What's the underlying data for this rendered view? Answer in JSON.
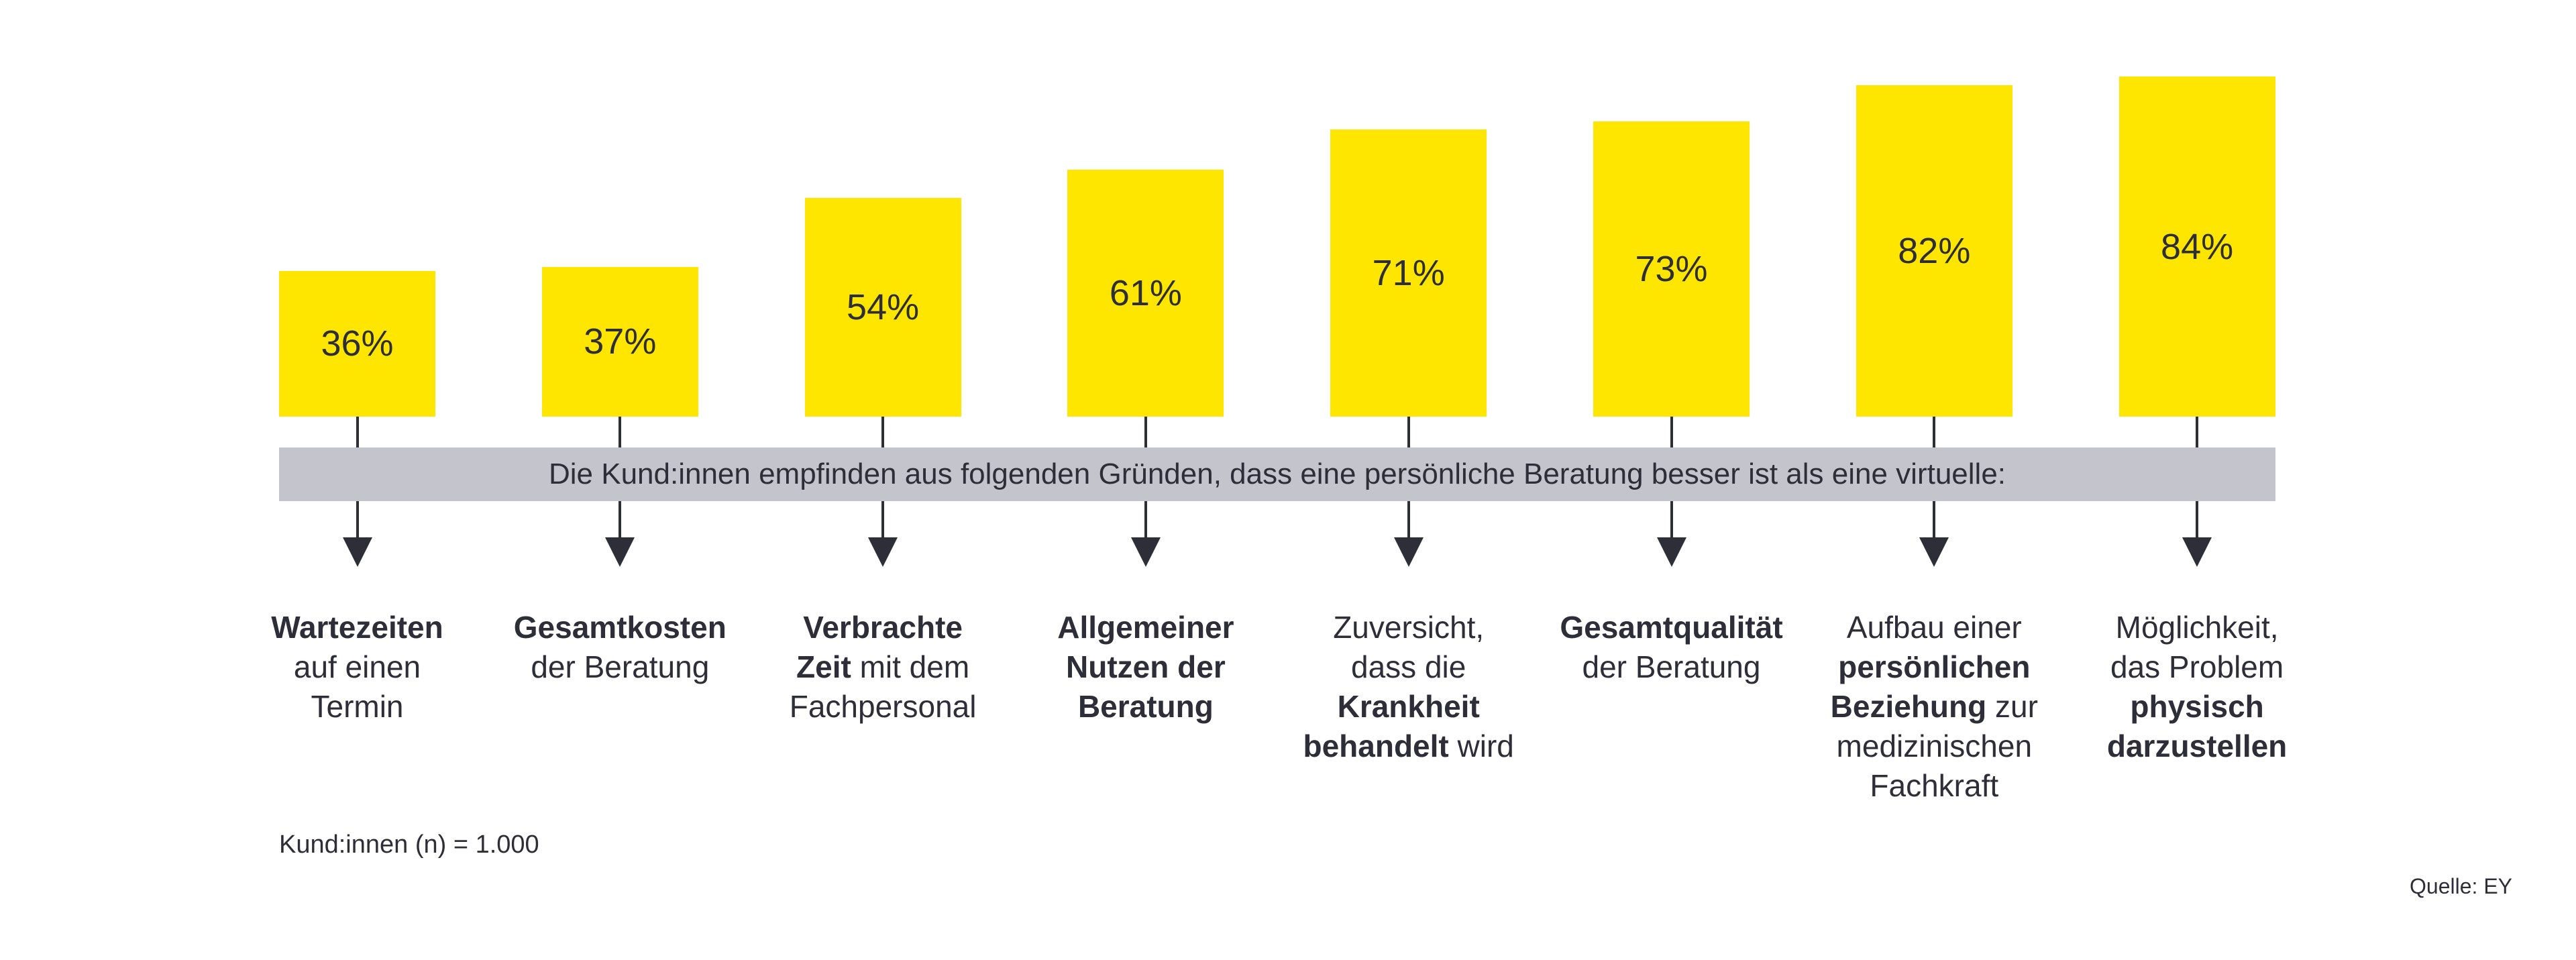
{
  "chart_data": {
    "type": "bar",
    "title": "Die Kund:innen empfinden aus folgenden Gründen, dass eine persönliche Beratung besser ist als eine virtuelle:",
    "categories": [
      "Wartezeiten auf einen Termin",
      "Gesamtkosten der Beratung",
      "Verbrachte Zeit mit dem Fachpersonal",
      "Allgemeiner Nutzen der Beratung",
      "Zuversicht, dass die Krankheit behandelt wird",
      "Gesamtqualität der Beratung",
      "Aufbau einer persönlichen Beziehung zur medizinischen Fachkraft",
      "Möglichkeit, das Problem physisch darzustellen"
    ],
    "values": [
      36,
      37,
      54,
      61,
      71,
      73,
      82,
      84
    ],
    "value_labels": [
      "36%",
      "37%",
      "54%",
      "61%",
      "71%",
      "73%",
      "82%",
      "84%"
    ],
    "unit": "%",
    "ylim": [
      0,
      100
    ],
    "grid": false,
    "bar_color": "#ffe600",
    "band_color": "#c4c4cc",
    "text_color": "#2e2e38",
    "label_lines": [
      [
        [
          {
            "t": "Wartezeiten",
            "b": true
          }
        ],
        [
          {
            "t": "auf einen",
            "b": false
          }
        ],
        [
          {
            "t": "Termin",
            "b": false
          }
        ]
      ],
      [
        [
          {
            "t": "Gesamtkosten",
            "b": true
          }
        ],
        [
          {
            "t": "der Beratung",
            "b": false
          }
        ]
      ],
      [
        [
          {
            "t": "Verbrachte",
            "b": true
          }
        ],
        [
          {
            "t": "Zeit",
            "b": true
          },
          {
            "t": " mit dem",
            "b": false
          }
        ],
        [
          {
            "t": "Fachpersonal",
            "b": false
          }
        ]
      ],
      [
        [
          {
            "t": "Allgemeiner",
            "b": true
          }
        ],
        [
          {
            "t": "Nutzen der",
            "b": true
          }
        ],
        [
          {
            "t": "Beratung",
            "b": true
          }
        ]
      ],
      [
        [
          {
            "t": "Zuversicht,",
            "b": false
          }
        ],
        [
          {
            "t": "dass die",
            "b": false
          }
        ],
        [
          {
            "t": "Krankheit",
            "b": true
          }
        ],
        [
          {
            "t": "behandelt",
            "b": true
          },
          {
            "t": " wird",
            "b": false
          }
        ]
      ],
      [
        [
          {
            "t": "Gesamtqualität",
            "b": true
          }
        ],
        [
          {
            "t": "der Beratung",
            "b": false
          }
        ]
      ],
      [
        [
          {
            "t": "Aufbau einer",
            "b": false
          }
        ],
        [
          {
            "t": "persönlichen",
            "b": true
          }
        ],
        [
          {
            "t": "Beziehung",
            "b": true
          },
          {
            "t": " zur",
            "b": false
          }
        ],
        [
          {
            "t": "medizinischen",
            "b": false
          }
        ],
        [
          {
            "t": "Fachkraft",
            "b": false
          }
        ]
      ],
      [
        [
          {
            "t": "Möglichkeit,",
            "b": false
          }
        ],
        [
          {
            "t": "das Problem",
            "b": false
          }
        ],
        [
          {
            "t": "physisch",
            "b": true
          }
        ],
        [
          {
            "t": "darzustellen",
            "b": true
          }
        ]
      ]
    ]
  },
  "footer": {
    "sample": "Kund:innen (n) = 1.000",
    "source": "Quelle: EY"
  }
}
